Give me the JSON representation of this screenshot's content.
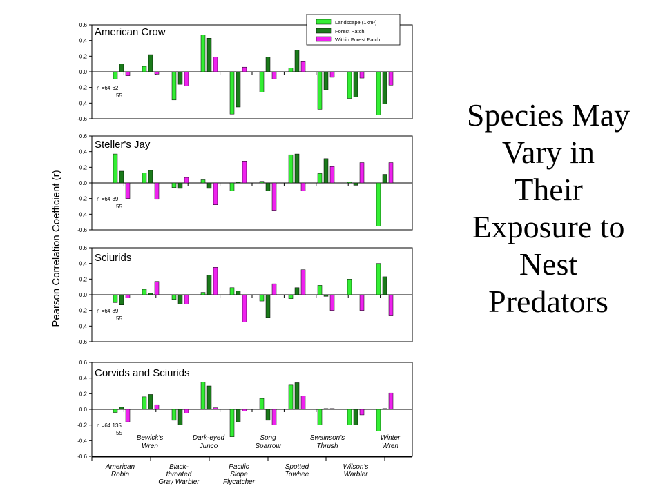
{
  "slide": {
    "title_lines": [
      "Species May",
      "Vary in",
      "Their",
      "Exposure to",
      "Nest",
      "Predators"
    ]
  },
  "ylabel": "Pearson Correlation Coefficient (r)",
  "legend": {
    "entries": [
      "Landscape (1km²)",
      "Forest Patch",
      "Within Forest Patch"
    ]
  },
  "colors": {
    "landscape": "#33ee33",
    "forest": "#1a7a1a",
    "within": "#ee22ee"
  },
  "species_bottom": [
    "American Robin",
    "Black-throated Gray Warbler",
    "Pacific Slope Flycatcher",
    "Spotted Towhee",
    "Wilson's Warbler"
  ],
  "species_inside": [
    "Bewick's Wren",
    "Dark-eyed Junco",
    "Song Sparrow",
    "Swainson's Thrush",
    "Winter Wren"
  ],
  "species_bottom_lines": [
    [
      "American",
      "Robin"
    ],
    [
      "Black-",
      "throated",
      "Gray Warbler"
    ],
    [
      "Pacific",
      "Slope",
      "Flycatcher"
    ],
    [
      "Spotted",
      "Towhee"
    ],
    [
      "Wilson's",
      "Warbler"
    ]
  ],
  "species_inside_lines": [
    [
      "Bewick's",
      "Wren"
    ],
    [
      "Dark-eyed",
      "Junco"
    ],
    [
      "Song",
      "Sparrow"
    ],
    [
      "Swainson's",
      "Thrush"
    ],
    [
      "Winter",
      "Wren"
    ]
  ],
  "chart_data": [
    {
      "type": "bar",
      "title": "American Crow",
      "categories": [
        "American Robin",
        "Bewick's Wren",
        "Black-throated Gray Warbler",
        "Dark-eyed Junco",
        "Pacific Slope Flycatcher",
        "Song Sparrow",
        "Spotted Towhee",
        "Swainson's Thrush",
        "Wilson's Warbler",
        "Winter Wren"
      ],
      "series": [
        {
          "name": "Landscape (1km²)",
          "values": [
            -0.09,
            0.07,
            -0.36,
            0.47,
            -0.54,
            -0.26,
            0.05,
            -0.48,
            -0.34,
            -0.55
          ]
        },
        {
          "name": "Forest Patch",
          "values": [
            0.1,
            0.22,
            -0.16,
            0.43,
            -0.45,
            0.19,
            0.28,
            -0.23,
            -0.32,
            -0.41
          ]
        },
        {
          "name": "Within Forest Patch",
          "values": [
            -0.05,
            -0.03,
            -0.18,
            0.19,
            0.06,
            -0.09,
            0.13,
            -0.07,
            -0.08,
            -0.17
          ]
        }
      ],
      "n_label": [
        "n =64   62",
        "55"
      ],
      "ylim": [
        -0.6,
        0.6
      ],
      "yticks": [
        "0.6",
        "0.4",
        "0.2",
        "0.0",
        "-0.2",
        "-0.4",
        "-0.6"
      ]
    },
    {
      "type": "bar",
      "title": "Steller's Jay",
      "categories": [
        "American Robin",
        "Bewick's Wren",
        "Black-throated Gray Warbler",
        "Dark-eyed Junco",
        "Pacific Slope Flycatcher",
        "Song Sparrow",
        "Spotted Towhee",
        "Swainson's Thrush",
        "Wilson's Warbler",
        "Winter Wren"
      ],
      "series": [
        {
          "name": "Landscape (1km²)",
          "values": [
            0.37,
            0.13,
            -0.06,
            0.04,
            -0.1,
            0.02,
            0.36,
            0.12,
            0.01,
            -0.55
          ]
        },
        {
          "name": "Forest Patch",
          "values": [
            0.15,
            0.16,
            -0.07,
            -0.07,
            0.01,
            -0.1,
            0.37,
            0.31,
            -0.03,
            0.11
          ]
        },
        {
          "name": "Within Forest Patch",
          "values": [
            -0.2,
            -0.21,
            0.07,
            -0.28,
            0.28,
            -0.35,
            -0.1,
            0.21,
            0.26,
            0.26
          ]
        }
      ],
      "n_label": [
        "n =64   39",
        "55"
      ],
      "ylim": [
        -0.6,
        0.6
      ],
      "yticks": [
        "0.6",
        "0.4",
        "0.2",
        "0.0",
        "-0.2",
        "-0.4",
        "-0.6"
      ]
    },
    {
      "type": "bar",
      "title": "Sciurids",
      "categories": [
        "American Robin",
        "Bewick's Wren",
        "Black-throated Gray Warbler",
        "Dark-eyed Junco",
        "Pacific Slope Flycatcher",
        "Song Sparrow",
        "Spotted Towhee",
        "Swainson's Thrush",
        "Wilson's Warbler",
        "Winter Wren"
      ],
      "series": [
        {
          "name": "Landscape (1km²)",
          "values": [
            -0.1,
            0.07,
            -0.06,
            0.03,
            0.09,
            -0.08,
            -0.05,
            0.12,
            0.2,
            0.4
          ]
        },
        {
          "name": "Forest Patch",
          "values": [
            -0.13,
            0.02,
            -0.12,
            0.25,
            0.05,
            -0.29,
            0.09,
            -0.02,
            0.0,
            0.23
          ]
        },
        {
          "name": "Within Forest Patch",
          "values": [
            -0.04,
            0.17,
            -0.12,
            0.35,
            -0.35,
            0.14,
            0.32,
            -0.2,
            -0.2,
            -0.27
          ]
        }
      ],
      "n_label": [
        "n =64   89",
        "55"
      ],
      "ylim": [
        -0.6,
        0.6
      ],
      "yticks": [
        "0.6",
        "0.4",
        "0.2",
        "0.0",
        "-0.2",
        "-0.4",
        "-0.6"
      ]
    },
    {
      "type": "bar",
      "title": "Corvids and Sciurids",
      "categories": [
        "American Robin",
        "Bewick's Wren",
        "Black-throated Gray Warbler",
        "Dark-eyed Junco",
        "Pacific Slope Flycatcher",
        "Song Sparrow",
        "Spotted Towhee",
        "Swainson's Thrush",
        "Wilson's Warbler",
        "Winter Wren"
      ],
      "series": [
        {
          "name": "Landscape (1km²)",
          "values": [
            -0.04,
            0.16,
            -0.14,
            0.35,
            -0.35,
            0.14,
            0.31,
            -0.2,
            -0.2,
            -0.28
          ]
        },
        {
          "name": "Forest Patch",
          "values": [
            0.03,
            0.19,
            -0.2,
            0.3,
            -0.16,
            -0.14,
            0.34,
            0.01,
            -0.2,
            0.01
          ]
        },
        {
          "name": "Within Forest Patch",
          "values": [
            -0.16,
            0.06,
            -0.05,
            0.02,
            -0.02,
            -0.2,
            0.17,
            0.01,
            -0.07,
            0.21
          ]
        }
      ],
      "n_label": [
        "n =64   135",
        "55"
      ],
      "ylim": [
        -0.6,
        0.6
      ],
      "yticks": [
        "0.6",
        "0.4",
        "0.2",
        "0.0",
        "-0.2",
        "-0.4",
        "-0.6"
      ]
    }
  ]
}
